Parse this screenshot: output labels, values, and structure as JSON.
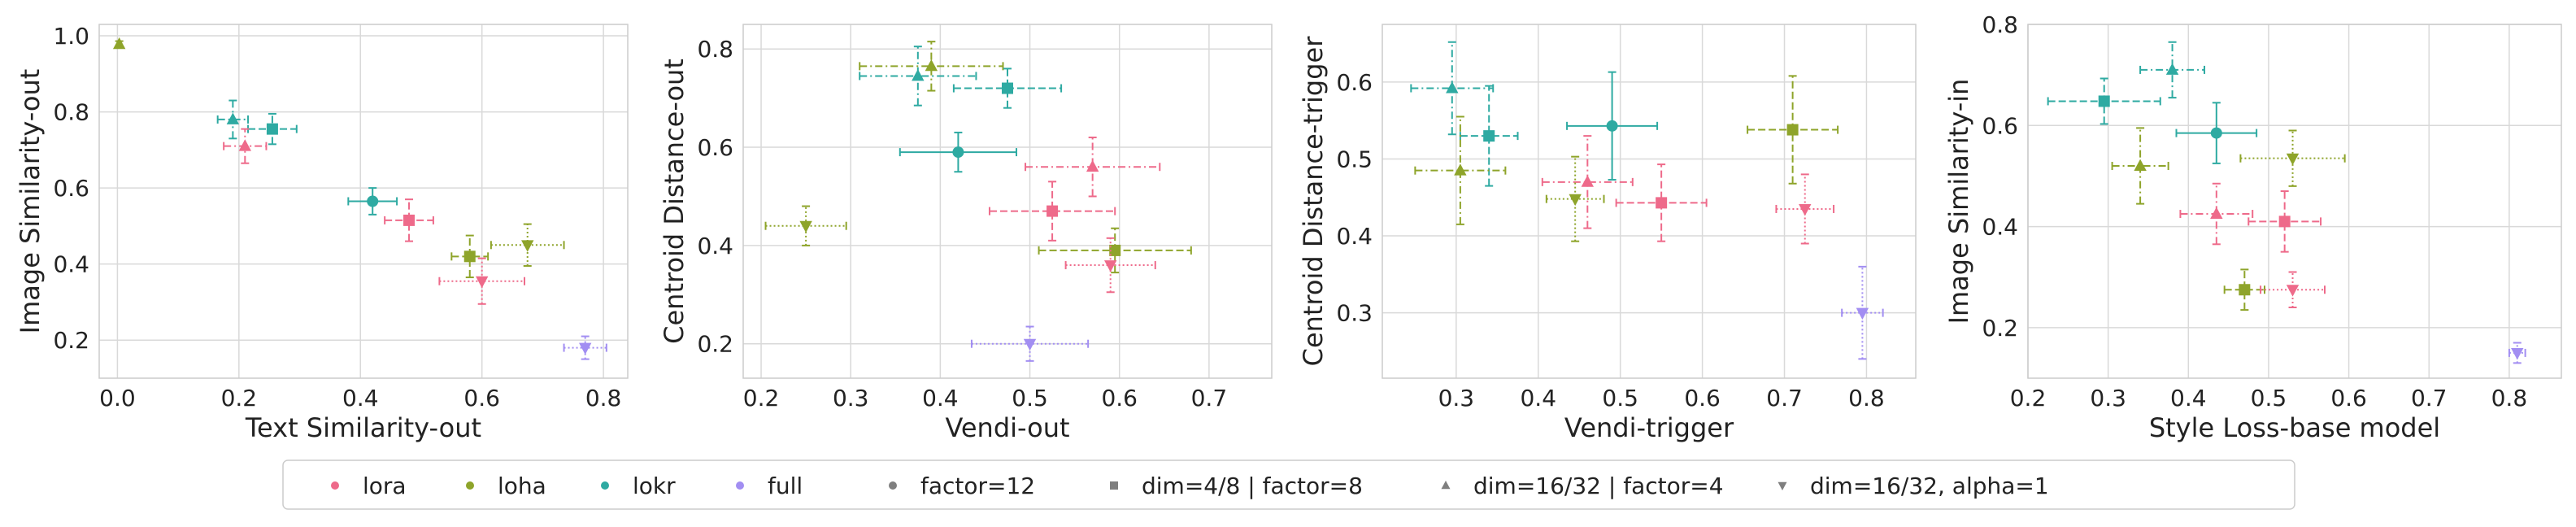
{
  "chart_data": [
    {
      "type": "scatter",
      "xlabel": "Text Similarity-out",
      "ylabel": "Image Similarity-out",
      "xlim": [
        -0.03,
        0.84
      ],
      "ylim": [
        0.1,
        1.03
      ],
      "xticks": [
        0.0,
        0.2,
        0.4,
        0.6,
        0.8
      ],
      "yticks": [
        0.2,
        0.4,
        0.6,
        0.8,
        1.0
      ],
      "points": [
        {
          "algo": "loha",
          "config": "dim=16/32 | factor=4",
          "x": 0.003,
          "y": 0.978,
          "xerr": 0.0,
          "yerr": 0.008
        },
        {
          "algo": "lokr",
          "config": "dim=16/32 | factor=4",
          "x": 0.19,
          "y": 0.78,
          "xerr": 0.025,
          "yerr": 0.05
        },
        {
          "algo": "lokr",
          "config": "dim=4/8 | factor=8",
          "x": 0.255,
          "y": 0.755,
          "xerr": 0.04,
          "yerr": 0.04
        },
        {
          "algo": "lora",
          "config": "dim=16/32 | factor=4",
          "x": 0.21,
          "y": 0.71,
          "xerr": 0.035,
          "yerr": 0.045
        },
        {
          "algo": "lokr",
          "config": "factor=12",
          "x": 0.42,
          "y": 0.565,
          "xerr": 0.04,
          "yerr": 0.035
        },
        {
          "algo": "lora",
          "config": "dim=4/8 | factor=8",
          "x": 0.48,
          "y": 0.515,
          "xerr": 0.04,
          "yerr": 0.055
        },
        {
          "algo": "loha",
          "config": "dim=4/8 | factor=8",
          "x": 0.58,
          "y": 0.42,
          "xerr": 0.03,
          "yerr": 0.055
        },
        {
          "algo": "loha",
          "config": "dim=16/32, alpha=1",
          "x": 0.675,
          "y": 0.45,
          "xerr": 0.06,
          "yerr": 0.055
        },
        {
          "algo": "lora",
          "config": "dim=16/32, alpha=1",
          "x": 0.6,
          "y": 0.355,
          "xerr": 0.07,
          "yerr": 0.06
        },
        {
          "algo": "full",
          "config": "dim=16/32, alpha=1",
          "x": 0.77,
          "y": 0.18,
          "xerr": 0.035,
          "yerr": 0.03
        }
      ]
    },
    {
      "type": "scatter",
      "xlabel": "Vendi-out",
      "ylabel": "Centroid Distance-out",
      "xlim": [
        0.18,
        0.77
      ],
      "ylim": [
        0.13,
        0.85
      ],
      "xticks": [
        0.2,
        0.3,
        0.4,
        0.5,
        0.6,
        0.7
      ],
      "yticks": [
        0.2,
        0.4,
        0.6,
        0.8
      ],
      "points": [
        {
          "algo": "loha",
          "config": "dim=16/32, alpha=1",
          "x": 0.25,
          "y": 0.44,
          "xerr": 0.045,
          "yerr": 0.04
        },
        {
          "algo": "lokr",
          "config": "dim=16/32 | factor=4",
          "x": 0.375,
          "y": 0.745,
          "xerr": 0.065,
          "yerr": 0.06
        },
        {
          "algo": "loha",
          "config": "dim=16/32 | factor=4",
          "x": 0.39,
          "y": 0.765,
          "xerr": 0.08,
          "yerr": 0.05
        },
        {
          "algo": "lokr",
          "config": "dim=4/8 | factor=8",
          "x": 0.475,
          "y": 0.72,
          "xerr": 0.06,
          "yerr": 0.04
        },
        {
          "algo": "lokr",
          "config": "factor=12",
          "x": 0.42,
          "y": 0.59,
          "xerr": 0.065,
          "yerr": 0.04
        },
        {
          "algo": "lora",
          "config": "dim=16/32 | factor=4",
          "x": 0.57,
          "y": 0.56,
          "xerr": 0.075,
          "yerr": 0.06
        },
        {
          "algo": "lora",
          "config": "dim=4/8 | factor=8",
          "x": 0.525,
          "y": 0.47,
          "xerr": 0.07,
          "yerr": 0.06
        },
        {
          "algo": "loha",
          "config": "dim=4/8 | factor=8",
          "x": 0.595,
          "y": 0.39,
          "xerr": 0.085,
          "yerr": 0.045
        },
        {
          "algo": "lora",
          "config": "dim=16/32, alpha=1",
          "x": 0.59,
          "y": 0.36,
          "xerr": 0.05,
          "yerr": 0.055
        },
        {
          "algo": "full",
          "config": "dim=16/32, alpha=1",
          "x": 0.5,
          "y": 0.2,
          "xerr": 0.065,
          "yerr": 0.035
        }
      ]
    },
    {
      "type": "scatter",
      "xlabel": "Vendi-trigger",
      "ylabel": "Centroid Distance-trigger",
      "xlim": [
        0.21,
        0.86
      ],
      "ylim": [
        0.215,
        0.675
      ],
      "xticks": [
        0.3,
        0.4,
        0.5,
        0.6,
        0.7,
        0.8
      ],
      "yticks": [
        0.3,
        0.4,
        0.5,
        0.6
      ],
      "points": [
        {
          "algo": "lokr",
          "config": "dim=16/32 | factor=4",
          "x": 0.295,
          "y": 0.592,
          "xerr": 0.05,
          "yerr": 0.06
        },
        {
          "algo": "lokr",
          "config": "dim=4/8 | factor=8",
          "x": 0.34,
          "y": 0.53,
          "xerr": 0.035,
          "yerr": 0.065
        },
        {
          "algo": "lokr",
          "config": "factor=12",
          "x": 0.49,
          "y": 0.543,
          "xerr": 0.055,
          "yerr": 0.07
        },
        {
          "algo": "loha",
          "config": "dim=16/32 | factor=4",
          "x": 0.305,
          "y": 0.485,
          "xerr": 0.055,
          "yerr": 0.07
        },
        {
          "algo": "loha",
          "config": "dim=4/8 | factor=8",
          "x": 0.71,
          "y": 0.538,
          "xerr": 0.055,
          "yerr": 0.07
        },
        {
          "algo": "lora",
          "config": "dim=16/32 | factor=4",
          "x": 0.46,
          "y": 0.47,
          "xerr": 0.055,
          "yerr": 0.06
        },
        {
          "algo": "loha",
          "config": "dim=16/32, alpha=1",
          "x": 0.445,
          "y": 0.448,
          "xerr": 0.035,
          "yerr": 0.055
        },
        {
          "algo": "lora",
          "config": "dim=4/8 | factor=8",
          "x": 0.55,
          "y": 0.443,
          "xerr": 0.055,
          "yerr": 0.05
        },
        {
          "algo": "lora",
          "config": "dim=16/32, alpha=1",
          "x": 0.725,
          "y": 0.435,
          "xerr": 0.035,
          "yerr": 0.045
        },
        {
          "algo": "full",
          "config": "dim=16/32, alpha=1",
          "x": 0.795,
          "y": 0.3,
          "xerr": 0.025,
          "yerr": 0.06
        }
      ]
    },
    {
      "type": "scatter",
      "xlabel": "Style Loss-base model",
      "ylabel": "Image Similarity-in",
      "xlim": [
        0.2,
        0.865
      ],
      "ylim": [
        0.1,
        0.8
      ],
      "xticks": [
        0.2,
        0.3,
        0.4,
        0.5,
        0.6,
        0.7,
        0.8
      ],
      "yticks": [
        0.2,
        0.4,
        0.6,
        0.8
      ],
      "points": [
        {
          "algo": "lokr",
          "config": "dim=4/8 | factor=8",
          "x": 0.295,
          "y": 0.648,
          "xerr": 0.07,
          "yerr": 0.045
        },
        {
          "algo": "lokr",
          "config": "dim=16/32 | factor=4",
          "x": 0.38,
          "y": 0.71,
          "xerr": 0.04,
          "yerr": 0.055
        },
        {
          "algo": "lokr",
          "config": "factor=12",
          "x": 0.435,
          "y": 0.585,
          "xerr": 0.05,
          "yerr": 0.06
        },
        {
          "algo": "loha",
          "config": "dim=16/32 | factor=4",
          "x": 0.34,
          "y": 0.52,
          "xerr": 0.035,
          "yerr": 0.075
        },
        {
          "algo": "loha",
          "config": "dim=16/32, alpha=1",
          "x": 0.53,
          "y": 0.535,
          "xerr": 0.065,
          "yerr": 0.055
        },
        {
          "algo": "lora",
          "config": "dim=16/32 | factor=4",
          "x": 0.435,
          "y": 0.425,
          "xerr": 0.045,
          "yerr": 0.06
        },
        {
          "algo": "lora",
          "config": "dim=4/8 | factor=8",
          "x": 0.52,
          "y": 0.41,
          "xerr": 0.045,
          "yerr": 0.06
        },
        {
          "algo": "loha",
          "config": "dim=4/8 | factor=8",
          "x": 0.47,
          "y": 0.275,
          "xerr": 0.025,
          "yerr": 0.04
        },
        {
          "algo": "lora",
          "config": "dim=16/32, alpha=1",
          "x": 0.53,
          "y": 0.275,
          "xerr": 0.04,
          "yerr": 0.035
        },
        {
          "algo": "full",
          "config": "dim=16/32, alpha=1",
          "x": 0.81,
          "y": 0.15,
          "xerr": 0.01,
          "yerr": 0.02
        }
      ]
    }
  ],
  "legend": {
    "placement": "bottom-center",
    "algorithms": [
      {
        "key": "lora",
        "label": "lora",
        "color": "#ee6a8a"
      },
      {
        "key": "loha",
        "label": "loha",
        "color": "#8ea42a"
      },
      {
        "key": "lokr",
        "label": "lokr",
        "color": "#2eaaa2"
      },
      {
        "key": "full",
        "label": "full",
        "color": "#a28ef2"
      }
    ],
    "configs": [
      {
        "key": "factor=12",
        "label": "factor=12",
        "marker": "circle",
        "dash": "solid"
      },
      {
        "key": "dim=4/8 | factor=8",
        "label": "dim=4/8 | factor=8",
        "marker": "square",
        "dash": "dashed"
      },
      {
        "key": "dim=16/32 | factor=4",
        "label": "dim=16/32 | factor=4",
        "marker": "triangle-up",
        "dash": "dashdot"
      },
      {
        "key": "dim=16/32, alpha=1",
        "label": "dim=16/32, alpha=1",
        "marker": "triangle-down",
        "dash": "dotted"
      }
    ]
  },
  "style": {
    "grid": true,
    "grid_color": "#d9d9d9",
    "legend_marker_color": "#7f7f7f"
  }
}
